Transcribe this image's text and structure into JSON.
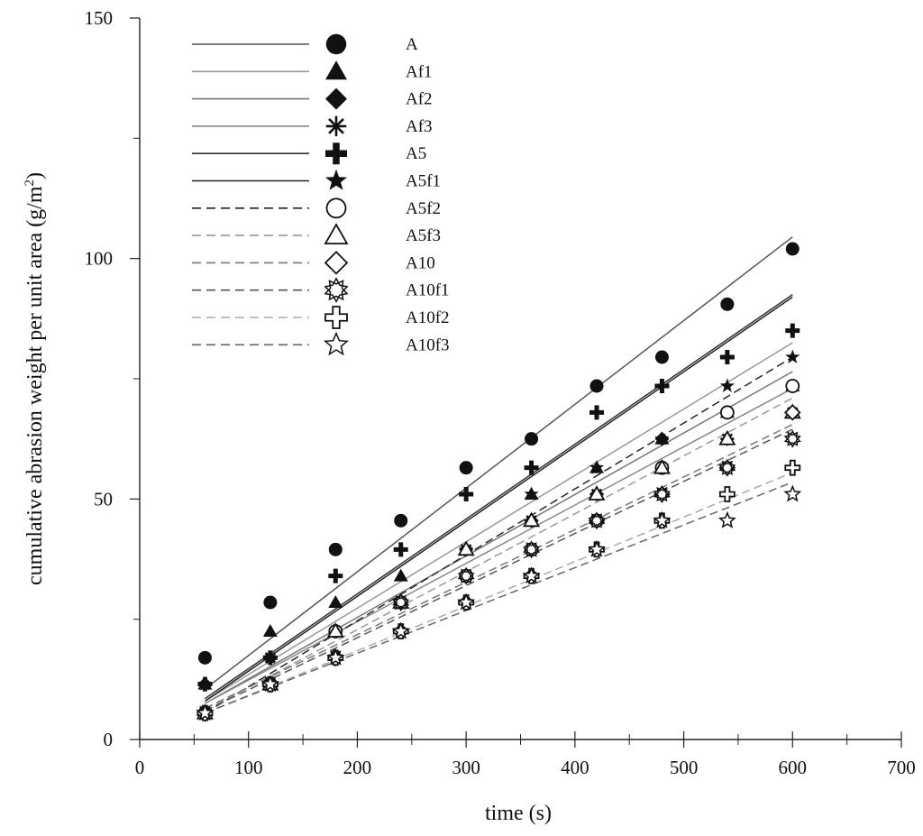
{
  "chart_data": {
    "type": "scatter",
    "title": "",
    "xlabel": "time (s)",
    "ylabel_main": "cumulative abrasion weight per unit area (g/m",
    "ylabel_sup": "2",
    "ylabel_close": ")",
    "xlim": [
      0,
      700
    ],
    "ylim": [
      0,
      150
    ],
    "x_ticks": [
      0,
      100,
      200,
      300,
      400,
      500,
      600,
      700
    ],
    "x_tick_labels": [
      "0",
      "100",
      "200",
      "300",
      "400",
      "500",
      "600",
      "700"
    ],
    "y_ticks": [
      0,
      50,
      100,
      150
    ],
    "y_tick_labels": [
      "0",
      "50",
      "100",
      "150"
    ],
    "grid": false,
    "legend_position": "top-left",
    "x": [
      60,
      120,
      180,
      240,
      300,
      360,
      420,
      480,
      540,
      600
    ],
    "series": [
      {
        "name": "A",
        "marker": "filled-circle",
        "line": "solid",
        "color": "#555555",
        "values": [
          17,
          28.5,
          39.5,
          45.5,
          56.5,
          62.5,
          73.5,
          79.5,
          90.5,
          102
        ],
        "fit": [
          [
            60,
            10.5
          ],
          [
            600,
            104.5
          ]
        ]
      },
      {
        "name": "Af1",
        "marker": "filled-triangle",
        "line": "solid",
        "color": "#999999",
        "values": [
          11.5,
          22.5,
          28.5,
          34,
          39.5,
          51,
          56.5,
          62.5,
          68,
          73.5
        ],
        "fit": [
          [
            60,
            8
          ],
          [
            600,
            82.5
          ]
        ]
      },
      {
        "name": "Af2",
        "marker": "filled-diamond",
        "line": "solid",
        "color": "#777777",
        "values": [
          11.5,
          17,
          22.5,
          28.5,
          34,
          45.5,
          51,
          62.5,
          68,
          73.5
        ],
        "fit": [
          [
            60,
            7.5
          ],
          [
            600,
            76.5
          ]
        ]
      },
      {
        "name": "Af3",
        "marker": "asterisk",
        "line": "solid",
        "color": "#888888",
        "values": [
          5.5,
          17,
          22.5,
          28.5,
          39.5,
          45.5,
          51,
          56.5,
          62.5,
          68
        ],
        "fit": [
          [
            60,
            7.5
          ],
          [
            600,
            73
          ]
        ]
      },
      {
        "name": "A5",
        "marker": "filled-cross",
        "line": "solid",
        "color": "#333333",
        "values": [
          11.5,
          17,
          34,
          39.5,
          51,
          56.5,
          68,
          73.5,
          79.5,
          85
        ],
        "fit": [
          [
            60,
            8.5
          ],
          [
            600,
            92.5
          ]
        ]
      },
      {
        "name": "A5f1",
        "marker": "filled-star",
        "line": "solid",
        "color": "#222222",
        "values": [
          11.5,
          17,
          22.5,
          28.5,
          39.5,
          51,
          56.5,
          62.5,
          73.5,
          79.5
        ],
        "fit": [
          [
            60,
            8
          ],
          [
            600,
            92
          ]
        ]
      },
      {
        "name": "A5f2",
        "marker": "open-circle",
        "line": "dashed",
        "color": "#222222",
        "values": [
          5.5,
          11.5,
          22.5,
          28.5,
          34,
          39.5,
          45.5,
          56.5,
          68,
          73.5
        ],
        "fit": [
          [
            60,
            5.5
          ],
          [
            600,
            79.5
          ]
        ]
      },
      {
        "name": "A5f3",
        "marker": "open-triangle",
        "line": "dashed",
        "color": "#999999",
        "values": [
          5.5,
          11.5,
          22.5,
          28.5,
          39.5,
          45.5,
          51,
          56.5,
          62.5,
          68
        ],
        "fit": [
          [
            60,
            6
          ],
          [
            600,
            71
          ]
        ]
      },
      {
        "name": "A10",
        "marker": "open-diamond",
        "line": "dashed",
        "color": "#777777",
        "values": [
          5.5,
          11.5,
          17,
          22.5,
          28.5,
          34,
          45.5,
          51,
          56.5,
          68
        ],
        "fit": [
          [
            60,
            6.5
          ],
          [
            600,
            65.5
          ]
        ]
      },
      {
        "name": "A10f1",
        "marker": "open-asterisk",
        "line": "dashed",
        "color": "#555555",
        "values": [
          5.5,
          11.5,
          17,
          28.5,
          34,
          39.5,
          45.5,
          51,
          56.5,
          62.5
        ],
        "fit": [
          [
            60,
            6
          ],
          [
            600,
            64.5
          ]
        ]
      },
      {
        "name": "A10f2",
        "marker": "open-cross",
        "line": "dashed",
        "color": "#aaaaaa",
        "values": [
          5.5,
          11.5,
          17,
          22.5,
          28.5,
          34,
          39.5,
          45.5,
          51,
          56.5
        ],
        "fit": [
          [
            60,
            5.5
          ],
          [
            600,
            55.5
          ]
        ]
      },
      {
        "name": "A10f3",
        "marker": "open-star",
        "line": "dashed",
        "color": "#666666",
        "values": [
          5.5,
          11.5,
          17,
          22.5,
          28.5,
          34,
          39.5,
          45.5,
          45.5,
          51
        ],
        "fit": [
          [
            60,
            5.5
          ],
          [
            600,
            53.5
          ]
        ]
      }
    ]
  }
}
